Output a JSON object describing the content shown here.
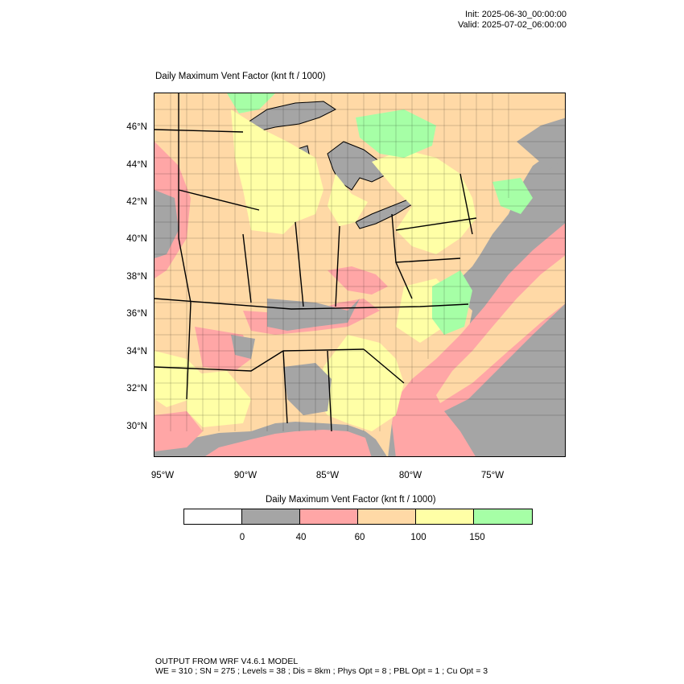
{
  "header": {
    "init": "Init: 2025-06-30_00:00:00",
    "valid": "Valid: 2025-07-02_06:00:00"
  },
  "map": {
    "title": "Daily Maximum Vent Factor   (knt ft / 1000)",
    "lat_labels": [
      "46°N",
      "44°N",
      "42°N",
      "40°N",
      "38°N",
      "36°N",
      "34°N",
      "32°N",
      "30°N"
    ],
    "lon_labels": [
      "95°W",
      "90°W",
      "85°W",
      "80°W",
      "75°W"
    ],
    "colors": {
      "water": "#a5a5a5",
      "c0_40": "#a5a5a5",
      "c40_60": "#ffa6a6",
      "c60_100": "#ffd9a6",
      "c100_150": "#ffffa6",
      "c150_plus": "#a6ffa6"
    }
  },
  "legend": {
    "title": "Daily Maximum Vent Factor  (knt ft / 1000)",
    "boxes": [
      {
        "color": "#ffffff",
        "name": "below-0"
      },
      {
        "color": "#a5a5a5",
        "name": "0-40"
      },
      {
        "color": "#ffa6a6",
        "name": "40-60"
      },
      {
        "color": "#ffd9a6",
        "name": "60-100"
      },
      {
        "color": "#ffffa6",
        "name": "100-150"
      },
      {
        "color": "#a6ffa6",
        "name": "150-plus"
      }
    ],
    "labels": [
      "0",
      "40",
      "60",
      "100",
      "150"
    ]
  },
  "footer": {
    "line1": "OUTPUT FROM WRF V4.6.1 MODEL",
    "line2": "WE = 310 ; SN = 275 ; Levels = 38 ; Dis = 8km ; Phys Opt = 8 ; PBL Opt = 1 ; Cu Opt = 3"
  }
}
